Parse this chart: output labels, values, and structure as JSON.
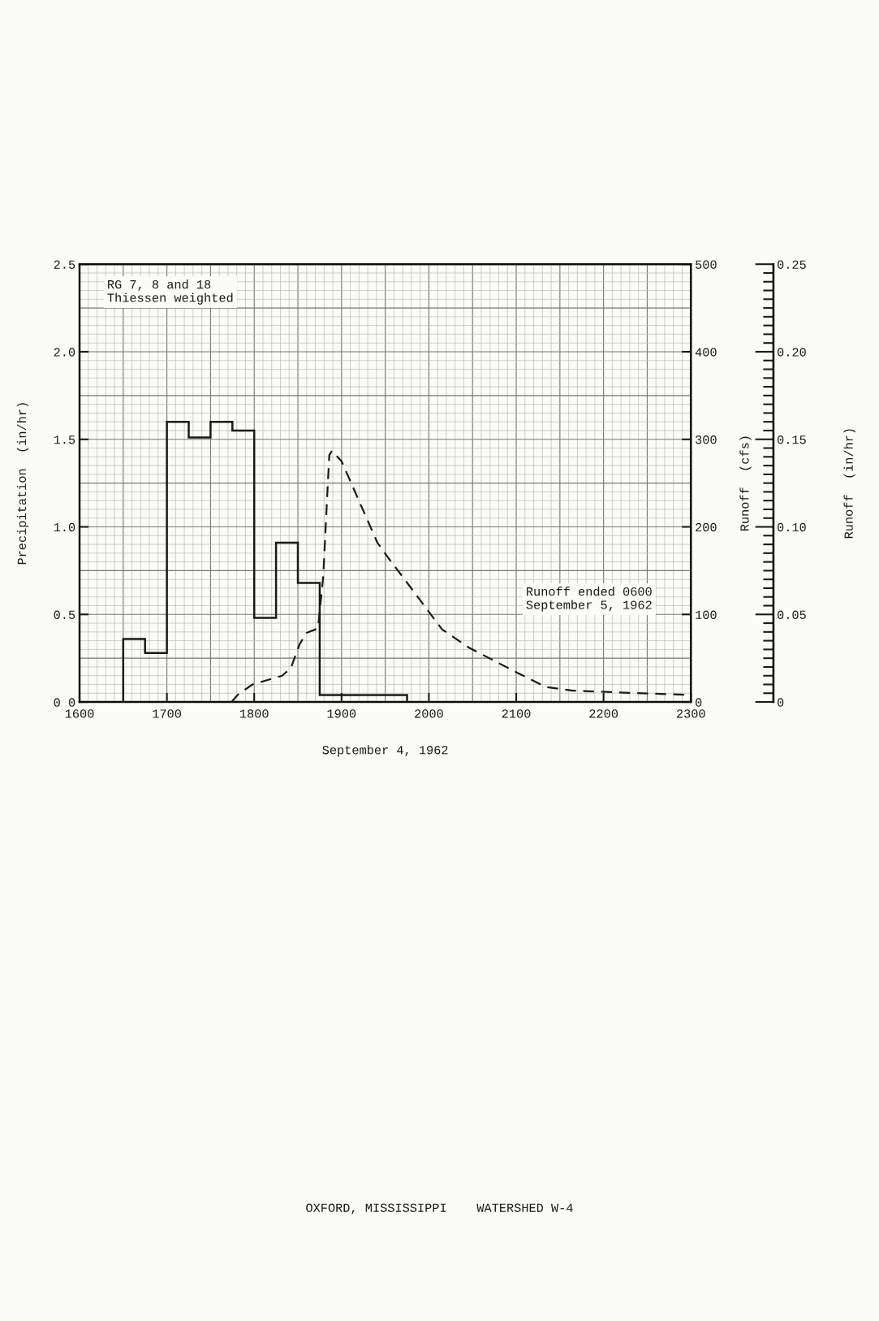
{
  "chart_data": {
    "type": "histogram",
    "xlabel": "September 4, 1962",
    "ylabel": "Precipitation  (in/hr)",
    "y2label": "Runoff  (cfs)",
    "y3label": "Runoff  (in/hr)",
    "annotations": [
      "RG 7, 8 and 18\nThiessen weighted",
      "Runoff ended 0600\nSeptember 5, 1962",
      "OXFORD, MISSISSIPPI    WATERSHED W-4"
    ],
    "bins": [
      1650,
      1675,
      1700,
      1725,
      1750,
      1775,
      1800,
      1825,
      1850,
      1875,
      1975
    ],
    "values": [
      0.36,
      0.28,
      1.6,
      1.51,
      1.6,
      1.55,
      0.48,
      0.91,
      0.68,
      0.04
    ],
    "color": "#1a1a1a",
    "series": [
      {
        "type": "line",
        "axis": "y2",
        "color": "#1a1a1a",
        "line_style": "dashed",
        "x": [
          1774,
          1781,
          1798,
          1832,
          1842,
          1852,
          1860,
          1873,
          1879,
          1884,
          1886,
          1889,
          1900,
          1941,
          1954,
          1985,
          2000,
          2015,
          2046,
          2100,
          2134,
          2165,
          2215,
          2300
        ],
        "values": [
          0,
          8,
          20,
          30,
          39,
          66,
          79,
          84,
          143,
          244,
          282,
          287,
          275,
          182,
          164,
          123,
          103,
          83,
          62,
          34,
          17,
          13,
          11,
          8
        ]
      }
    ],
    "xlim": [
      1600,
      2300
    ],
    "xticks": [
      1600,
      1700,
      1800,
      1900,
      2000,
      2100,
      2200,
      2300
    ],
    "ylim": [
      0,
      2.5
    ],
    "yticks": [
      {
        "value": 0,
        "label": "0 0"
      },
      {
        "value": 0.5,
        "label": "0.5"
      },
      {
        "value": 1,
        "label": "1.0"
      },
      {
        "value": 1.5,
        "label": "1.5"
      },
      {
        "value": 2,
        "label": "2.0"
      },
      {
        "value": 2.5,
        "label": "2.5"
      }
    ],
    "y2lim": [
      0,
      500
    ],
    "y2ticks": [
      0,
      100,
      200,
      300,
      400,
      500
    ],
    "y3lim": [
      0,
      0.25
    ],
    "y3ticks": [
      0,
      0.05,
      {
        "value": 0.1,
        "label": "0.10"
      },
      0.15,
      {
        "value": 0.2,
        "label": "0.20"
      },
      0.25
    ],
    "grid": true
  }
}
